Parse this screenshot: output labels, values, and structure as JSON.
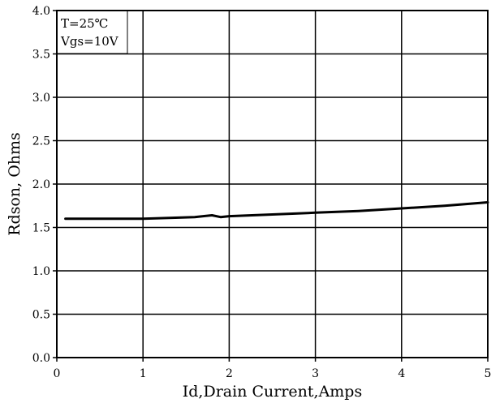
{
  "chart_data": {
    "type": "line",
    "title": "",
    "xlabel": "Id,Drain Current,Amps",
    "ylabel": "Rdson, Ohms",
    "xlim": [
      0,
      5
    ],
    "ylim": [
      0,
      4.0
    ],
    "x_ticks": [
      "0",
      "1",
      "2",
      "3",
      "4",
      "5"
    ],
    "y_ticks": [
      "0.0",
      "0.5",
      "1.0",
      "1.5",
      "2.0",
      "2.5",
      "3.0",
      "3.5",
      "4.0"
    ],
    "grid": true,
    "annotations": [
      "T=25℃",
      "Vgs=10V"
    ],
    "series": [
      {
        "x": [
          0.1,
          0.5,
          1.0,
          1.3,
          1.6,
          1.8,
          1.9,
          2.0,
          2.5,
          3.0,
          3.5,
          4.0,
          4.5,
          5.0
        ],
        "y": [
          1.6,
          1.6,
          1.6,
          1.61,
          1.62,
          1.64,
          1.62,
          1.63,
          1.65,
          1.67,
          1.69,
          1.72,
          1.75,
          1.79
        ]
      }
    ]
  }
}
